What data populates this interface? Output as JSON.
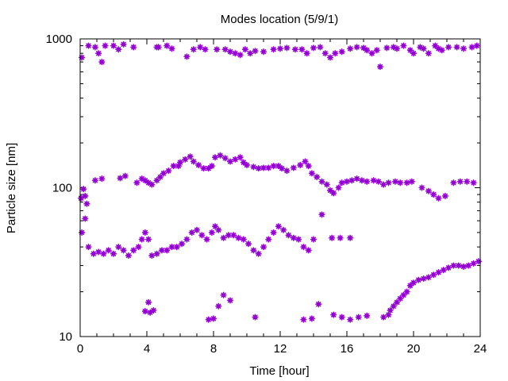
{
  "chart_data": {
    "type": "scatter",
    "title": "Modes location (5/9/1)",
    "xlabel": "Time [hour]",
    "ylabel": "Particle size [nm]",
    "xlim": [
      0,
      24
    ],
    "ylim": [
      10,
      1000
    ],
    "yscale": "log",
    "xticks": [
      0,
      4,
      8,
      12,
      16,
      20,
      24
    ],
    "xtick_labels": [
      "0",
      "4",
      "8",
      "12",
      "16",
      "20",
      "24"
    ],
    "yticks": [
      10,
      100,
      1000
    ],
    "ytick_labels": [
      "10",
      "100",
      "1000"
    ],
    "grid": false,
    "legend": "none",
    "marker": "asterisk",
    "color": "#9400d3",
    "series": [
      {
        "label_group": "mode-1000nm",
        "points": [
          [
            0.1,
            750
          ],
          [
            0.5,
            900
          ],
          [
            0.9,
            880
          ],
          [
            1.1,
            800
          ],
          [
            1.3,
            700
          ],
          [
            1.5,
            900
          ],
          [
            2.0,
            900
          ],
          [
            2.3,
            850
          ],
          [
            2.6,
            920
          ],
          [
            3.2,
            880
          ],
          [
            4.6,
            880
          ],
          [
            4.7,
            880
          ],
          [
            5.2,
            900
          ],
          [
            5.5,
            860
          ],
          [
            6.4,
            760
          ],
          [
            6.8,
            850
          ],
          [
            7.2,
            880
          ],
          [
            7.5,
            850
          ],
          [
            8.2,
            850
          ],
          [
            8.7,
            850
          ],
          [
            9.0,
            820
          ],
          [
            9.3,
            800
          ],
          [
            9.6,
            780
          ],
          [
            9.9,
            850
          ],
          [
            10.2,
            800
          ],
          [
            10.5,
            830
          ],
          [
            11.0,
            820
          ],
          [
            11.6,
            850
          ],
          [
            12.0,
            860
          ],
          [
            12.4,
            870
          ],
          [
            12.9,
            850
          ],
          [
            13.3,
            850
          ],
          [
            13.6,
            800
          ],
          [
            14.0,
            870
          ],
          [
            14.4,
            880
          ],
          [
            14.7,
            800
          ],
          [
            15.0,
            750
          ],
          [
            15.3,
            800
          ],
          [
            15.7,
            820
          ],
          [
            16.2,
            860
          ],
          [
            16.6,
            880
          ],
          [
            17.0,
            870
          ],
          [
            17.2,
            840
          ],
          [
            17.5,
            800
          ],
          [
            17.8,
            840
          ],
          [
            18.0,
            650
          ],
          [
            18.4,
            870
          ],
          [
            18.8,
            880
          ],
          [
            19.0,
            860
          ],
          [
            19.4,
            900
          ],
          [
            19.8,
            840
          ],
          [
            20.0,
            800
          ],
          [
            20.4,
            880
          ],
          [
            20.6,
            860
          ],
          [
            20.9,
            800
          ],
          [
            21.3,
            900
          ],
          [
            21.5,
            860
          ],
          [
            21.7,
            840
          ],
          [
            22.1,
            880
          ],
          [
            22.6,
            880
          ],
          [
            23.0,
            860
          ],
          [
            23.5,
            880
          ],
          [
            23.8,
            900
          ]
        ]
      },
      {
        "label_group": "mode-100nm",
        "points": [
          [
            0.05,
            85
          ],
          [
            0.2,
            98
          ],
          [
            0.3,
            88
          ],
          [
            0.4,
            78
          ],
          [
            0.9,
            112
          ],
          [
            1.3,
            115
          ],
          [
            2.4,
            116
          ],
          [
            2.7,
            120
          ],
          [
            3.4,
            108
          ],
          [
            3.7,
            115
          ],
          [
            3.9,
            112
          ],
          [
            4.1,
            108
          ],
          [
            4.3,
            105
          ],
          [
            4.6,
            112
          ],
          [
            4.8,
            118
          ],
          [
            5.0,
            125
          ],
          [
            5.3,
            130
          ],
          [
            5.6,
            140
          ],
          [
            5.9,
            140
          ],
          [
            6.0,
            148
          ],
          [
            6.3,
            155
          ],
          [
            6.6,
            162
          ],
          [
            6.8,
            150
          ],
          [
            7.1,
            142
          ],
          [
            7.4,
            135
          ],
          [
            7.7,
            135
          ],
          [
            7.9,
            140
          ],
          [
            8.1,
            160
          ],
          [
            8.4,
            165
          ],
          [
            8.7,
            158
          ],
          [
            9.0,
            150
          ],
          [
            9.3,
            155
          ],
          [
            9.6,
            160
          ],
          [
            9.8,
            148
          ],
          [
            10.0,
            142
          ],
          [
            10.4,
            138
          ],
          [
            10.7,
            135
          ],
          [
            11.0,
            136
          ],
          [
            11.3,
            136
          ],
          [
            11.6,
            140
          ],
          [
            11.9,
            140
          ],
          [
            12.1,
            135
          ],
          [
            12.4,
            130
          ],
          [
            12.8,
            136
          ],
          [
            13.2,
            142
          ],
          [
            13.5,
            150
          ],
          [
            13.7,
            140
          ],
          [
            13.9,
            125
          ],
          [
            14.2,
            118
          ],
          [
            14.5,
            110
          ],
          [
            14.8,
            105
          ],
          [
            15.0,
            96
          ],
          [
            15.2,
            92
          ],
          [
            15.5,
            100
          ],
          [
            15.7,
            108
          ],
          [
            16.0,
            110
          ],
          [
            16.3,
            112
          ],
          [
            16.6,
            115
          ],
          [
            16.9,
            112
          ],
          [
            17.2,
            110
          ],
          [
            17.6,
            112
          ],
          [
            17.9,
            110
          ],
          [
            18.2,
            105
          ],
          [
            18.5,
            108
          ],
          [
            18.9,
            110
          ],
          [
            19.2,
            108
          ],
          [
            19.6,
            108
          ],
          [
            19.9,
            110
          ],
          [
            20.5,
            100
          ],
          [
            20.9,
            95
          ],
          [
            21.2,
            90
          ],
          [
            21.5,
            85
          ],
          [
            21.9,
            88
          ],
          [
            22.4,
            108
          ],
          [
            22.8,
            110
          ],
          [
            23.2,
            110
          ],
          [
            23.6,
            108
          ]
        ]
      },
      {
        "label_group": "mode-40nm",
        "points": [
          [
            0.1,
            50
          ],
          [
            0.3,
            62
          ],
          [
            0.5,
            40
          ],
          [
            0.8,
            36
          ],
          [
            1.1,
            37
          ],
          [
            1.4,
            36
          ],
          [
            1.7,
            38
          ],
          [
            2.0,
            36
          ],
          [
            2.3,
            40
          ],
          [
            2.6,
            38
          ],
          [
            2.9,
            35
          ],
          [
            3.2,
            38
          ],
          [
            3.5,
            40
          ],
          [
            3.7,
            45
          ],
          [
            3.9,
            50
          ],
          [
            4.1,
            45
          ],
          [
            4.3,
            35
          ],
          [
            4.6,
            36
          ],
          [
            4.9,
            38
          ],
          [
            5.2,
            38
          ],
          [
            5.5,
            40
          ],
          [
            5.8,
            40
          ],
          [
            6.1,
            42
          ],
          [
            6.4,
            45
          ],
          [
            6.7,
            50
          ],
          [
            7.0,
            52
          ],
          [
            7.3,
            48
          ],
          [
            7.6,
            45
          ],
          [
            7.9,
            50
          ],
          [
            8.1,
            55
          ],
          [
            8.3,
            52
          ],
          [
            8.6,
            46
          ],
          [
            8.9,
            48
          ],
          [
            9.2,
            48
          ],
          [
            9.5,
            46
          ],
          [
            9.8,
            45
          ],
          [
            10.1,
            42
          ],
          [
            10.4,
            38
          ],
          [
            10.7,
            36
          ],
          [
            11.0,
            40
          ],
          [
            11.3,
            45
          ],
          [
            11.6,
            50
          ],
          [
            11.9,
            55
          ],
          [
            12.2,
            52
          ],
          [
            12.5,
            48
          ],
          [
            12.8,
            46
          ],
          [
            13.1,
            45
          ],
          [
            13.4,
            40
          ],
          [
            13.7,
            38
          ],
          [
            14.0,
            45
          ],
          [
            14.5,
            66
          ],
          [
            15.1,
            46
          ],
          [
            15.6,
            46
          ],
          [
            16.2,
            46
          ]
        ]
      },
      {
        "label_group": "mode-15nm",
        "points": [
          [
            3.9,
            14.8
          ],
          [
            4.1,
            17
          ],
          [
            4.2,
            14.5
          ],
          [
            4.4,
            15
          ],
          [
            7.7,
            13
          ],
          [
            8.0,
            13.2
          ],
          [
            8.3,
            16
          ],
          [
            8.6,
            19
          ],
          [
            9.0,
            17.5
          ],
          [
            10.5,
            13.5
          ],
          [
            13.4,
            13
          ],
          [
            13.9,
            13.2
          ],
          [
            14.3,
            16.5
          ],
          [
            15.2,
            14
          ],
          [
            15.7,
            13.5
          ],
          [
            16.2,
            13
          ],
          [
            16.7,
            13.5
          ],
          [
            17.2,
            13.8
          ],
          [
            18.2,
            13.5
          ],
          [
            18.5,
            14
          ],
          [
            18.6,
            15
          ],
          [
            18.8,
            16
          ],
          [
            19.0,
            17
          ],
          [
            19.2,
            18
          ],
          [
            19.4,
            19
          ],
          [
            19.6,
            20
          ],
          [
            19.8,
            22
          ],
          [
            20.0,
            23
          ],
          [
            20.3,
            24
          ],
          [
            20.6,
            24.5
          ],
          [
            20.9,
            25
          ],
          [
            21.2,
            26
          ],
          [
            21.5,
            27
          ],
          [
            21.8,
            28
          ],
          [
            22.1,
            29
          ],
          [
            22.4,
            30
          ],
          [
            22.7,
            30
          ],
          [
            23.0,
            29.5
          ],
          [
            23.3,
            30
          ],
          [
            23.6,
            31
          ],
          [
            23.9,
            32
          ]
        ]
      }
    ]
  }
}
